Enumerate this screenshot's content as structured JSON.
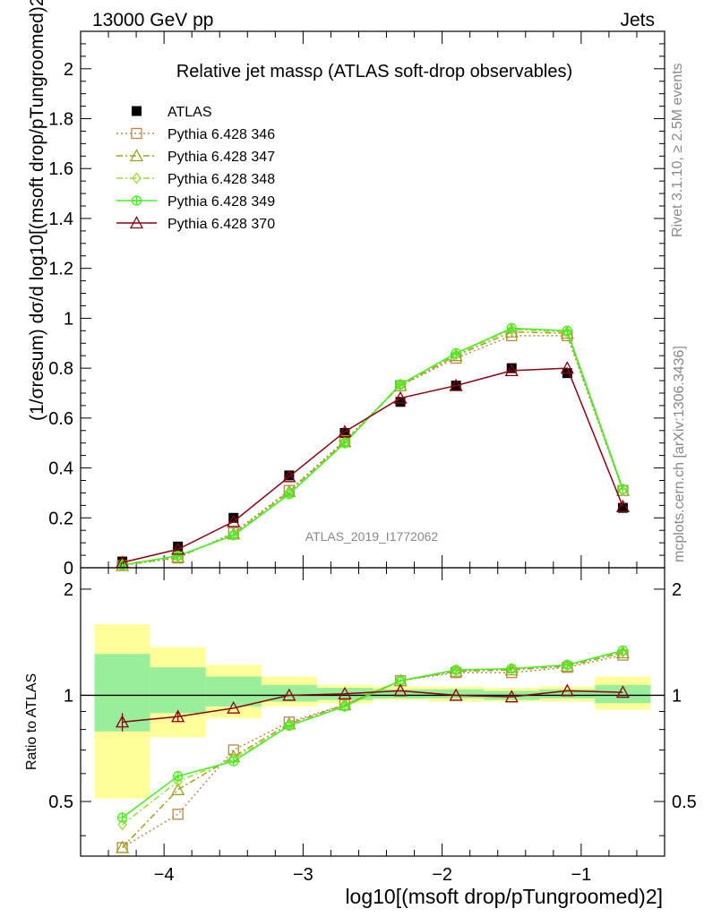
{
  "header": {
    "left": "13000 GeV pp",
    "right": "Jets"
  },
  "side_labels": {
    "rivet": "Rivet 3.1.10, ≥ 2.5M events",
    "mcplots": "mcplots.cern.ch [arXiv:1306.3436]"
  },
  "chart_data": [
    {
      "type": "line",
      "title": "Relative jet massρ (ATLAS soft-drop observables)",
      "ylabel": "(1/σresum) dσ/d log10[(msoft drop/pTungroomed)2]",
      "watermark": "ATLAS_2019_I1772062",
      "xlim": [
        -4.6,
        -0.4
      ],
      "ylim": [
        0,
        2.15
      ],
      "yticks": [
        0,
        0.2,
        0.4,
        0.6,
        0.8,
        1,
        1.2,
        1.4,
        1.6,
        1.8,
        2
      ],
      "ytick_labels": [
        "0",
        "0.2",
        "0.4",
        "0.6",
        "0.8",
        "1",
        "1.2",
        "1.4",
        "1.6",
        "1.8",
        "2"
      ],
      "legend_position": "top-left",
      "x": [
        -4.3,
        -3.9,
        -3.5,
        -3.1,
        -2.7,
        -2.3,
        -1.9,
        -1.5,
        -1.1,
        -0.7
      ],
      "series": [
        {
          "name": "ATLAS",
          "color": "#000000",
          "marker": "filled-square",
          "line": "none",
          "values": [
            0.025,
            0.085,
            0.2,
            0.37,
            0.54,
            0.665,
            0.73,
            0.8,
            0.78,
            0.24
          ]
        },
        {
          "name": "Pythia 6.428 346",
          "color": "#b8874a",
          "marker": "open-square",
          "line": "dotted",
          "values": [
            0.009,
            0.039,
            0.14,
            0.31,
            0.51,
            0.73,
            0.84,
            0.93,
            0.93,
            0.31
          ]
        },
        {
          "name": "Pythia 6.428 347",
          "color": "#a0a020",
          "marker": "open-triangle",
          "line": "dashdot",
          "values": [
            0.009,
            0.043,
            0.135,
            0.305,
            0.505,
            0.73,
            0.85,
            0.945,
            0.94,
            0.31
          ]
        },
        {
          "name": "Pythia 6.428 348",
          "color": "#99dd33",
          "marker": "open-diamond",
          "line": "dashdot",
          "values": [
            0.011,
            0.046,
            0.132,
            0.3,
            0.5,
            0.735,
            0.855,
            0.955,
            0.945,
            0.31
          ]
        },
        {
          "name": "Pythia 6.428 349",
          "color": "#44ee22",
          "marker": "open-circle-cross",
          "line": "solid",
          "values": [
            0.011,
            0.048,
            0.13,
            0.295,
            0.5,
            0.735,
            0.86,
            0.96,
            0.95,
            0.315
          ]
        },
        {
          "name": "Pythia 6.428 370",
          "color": "#8b0010",
          "marker": "open-triangle",
          "line": "solid",
          "values": [
            0.021,
            0.074,
            0.185,
            0.365,
            0.545,
            0.68,
            0.73,
            0.79,
            0.8,
            0.245
          ]
        }
      ]
    },
    {
      "type": "line",
      "ylabel": "Ratio to ATLAS",
      "xlabel": "log10[(msoft drop/pTungroomed)2]",
      "xlim": [
        -4.6,
        -0.4
      ],
      "ylim": [
        0.35,
        2.3
      ],
      "xticks": [
        -4,
        -3,
        -2,
        -1
      ],
      "xtick_labels": [
        "−4",
        "−3",
        "−2",
        "−1"
      ],
      "yticks": [
        0.5,
        1,
        2
      ],
      "ytick_labels": [
        "0.5",
        "1",
        "2"
      ],
      "reference_line": 1,
      "bins": [
        {
          "x_low": -4.5,
          "x_high": -4.1,
          "inner": [
            0.79,
            1.31
          ],
          "outer": [
            0.51,
            1.59
          ]
        },
        {
          "x_low": -4.1,
          "x_high": -3.7,
          "inner": [
            0.89,
            1.2
          ],
          "outer": [
            0.76,
            1.37
          ]
        },
        {
          "x_low": -3.7,
          "x_high": -3.3,
          "inner": [
            0.93,
            1.13
          ],
          "outer": [
            0.86,
            1.22
          ]
        },
        {
          "x_low": -3.3,
          "x_high": -2.9,
          "inner": [
            0.96,
            1.07
          ],
          "outer": [
            0.93,
            1.13
          ]
        },
        {
          "x_low": -2.9,
          "x_high": -2.5,
          "inner": [
            0.97,
            1.05
          ],
          "outer": [
            0.95,
            1.07
          ]
        },
        {
          "x_low": -2.5,
          "x_high": -2.1,
          "inner": [
            0.98,
            1.04
          ],
          "outer": [
            0.97,
            1.06
          ]
        },
        {
          "x_low": -2.1,
          "x_high": -1.7,
          "inner": [
            0.98,
            1.04
          ],
          "outer": [
            0.96,
            1.06
          ]
        },
        {
          "x_low": -1.7,
          "x_high": -1.3,
          "inner": [
            0.97,
            1.03
          ],
          "outer": [
            0.96,
            1.05
          ]
        },
        {
          "x_low": -1.3,
          "x_high": -0.9,
          "inner": [
            0.98,
            1.04
          ],
          "outer": [
            0.96,
            1.06
          ]
        },
        {
          "x_low": -0.9,
          "x_high": -0.5,
          "inner": [
            0.95,
            1.07
          ],
          "outer": [
            0.91,
            1.13
          ]
        }
      ],
      "x": [
        -4.3,
        -3.9,
        -3.5,
        -3.1,
        -2.7,
        -2.3,
        -1.9,
        -1.5,
        -1.1,
        -0.7
      ],
      "series": [
        {
          "color": "#b8874a",
          "marker": "open-square",
          "line": "dotted",
          "values": [
            0.37,
            0.46,
            0.7,
            0.84,
            0.94,
            1.1,
            1.16,
            1.16,
            1.2,
            1.3
          ]
        },
        {
          "color": "#a0a020",
          "marker": "open-triangle",
          "line": "dashdot",
          "values": [
            0.37,
            0.54,
            0.67,
            0.83,
            0.94,
            1.1,
            1.17,
            1.18,
            1.21,
            1.32
          ]
        },
        {
          "color": "#99dd33",
          "marker": "open-diamond",
          "line": "dashdot",
          "values": [
            0.43,
            0.57,
            0.66,
            0.82,
            0.93,
            1.1,
            1.18,
            1.19,
            1.22,
            1.33
          ]
        },
        {
          "color": "#44ee22",
          "marker": "open-circle-cross",
          "line": "solid",
          "values": [
            0.45,
            0.59,
            0.65,
            0.82,
            0.93,
            1.1,
            1.18,
            1.19,
            1.22,
            1.34
          ]
        },
        {
          "color": "#8b0010",
          "marker": "open-triangle",
          "line": "solid",
          "values": [
            0.84,
            0.87,
            0.92,
            1.0,
            1.01,
            1.03,
            1.0,
            0.99,
            1.03,
            1.02
          ],
          "errors": [
            0.05,
            0.03,
            0.0,
            0.0,
            0.0,
            0.0,
            0.0,
            0.0,
            0.0,
            0.0
          ]
        }
      ]
    }
  ]
}
